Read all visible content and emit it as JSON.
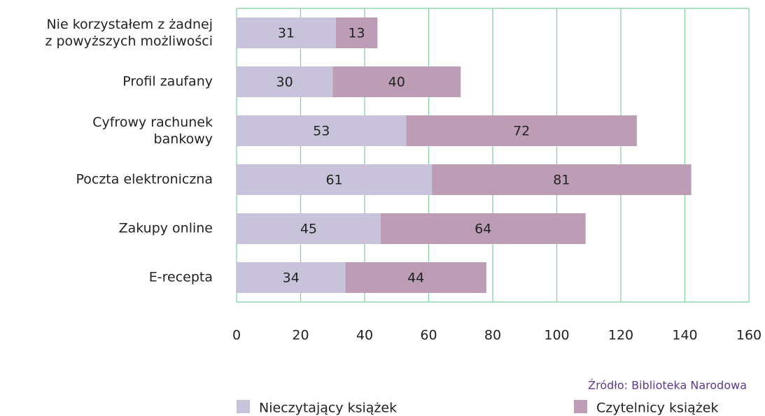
{
  "chart_data": {
    "type": "stacked_barh",
    "categories": [
      "Nie korzystałem z żadnej\nz powyższych możliwości",
      "Profil zaufany",
      "Cyfrowy rachunek\nbankowy",
      "Poczta elektroniczna",
      "Zakupy online",
      "E-recepta"
    ],
    "series": [
      {
        "name": "Nieczytający książek",
        "color": "#c8c3db",
        "values": [
          31,
          30,
          53,
          61,
          45,
          34
        ]
      },
      {
        "name": "Czytelnicy książek",
        "color": "#bc9db5",
        "values": [
          13,
          40,
          72,
          81,
          64,
          44
        ]
      }
    ],
    "xlim": [
      0,
      160
    ],
    "xticks": [
      0,
      20,
      40,
      60,
      80,
      100,
      120,
      140,
      160
    ],
    "grid": true,
    "source": "Źródło: Biblioteka Narodowa",
    "legend": "bottom"
  }
}
